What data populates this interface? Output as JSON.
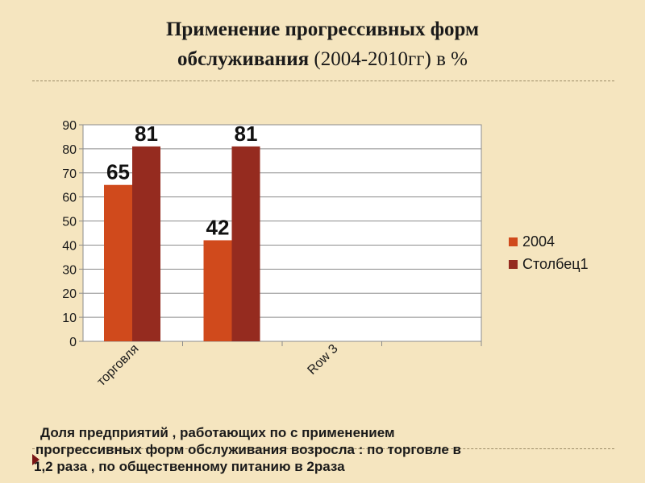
{
  "title": {
    "line1": "Применение прогрессивных форм",
    "line2_bold": "обслуживания",
    "line2_rest": " (2004-2010гг) в %"
  },
  "caption": {
    "line1": "Доля  предприятий , работающих по с применением",
    "line2": "прогрессивных форм обслуживания возросла : по торговле в",
    "line3": "1,2 раза , по общественному питанию  в 2раза"
  },
  "colors": {
    "series1": "#d04a1c",
    "series2": "#952b1f",
    "background": "#f5e5bf",
    "plot_bg": "#ffffff",
    "gridline": "#8c8c8c"
  },
  "chart_data": {
    "type": "bar",
    "categories": [
      "торговля",
      "",
      "Row 3",
      ""
    ],
    "series": [
      {
        "name": "2004",
        "values": [
          65,
          42,
          null,
          null
        ]
      },
      {
        "name": "Столбец1",
        "values": [
          81,
          81,
          null,
          null
        ]
      }
    ],
    "ylim": [
      0,
      90
    ],
    "yticks": [
      0,
      10,
      20,
      30,
      40,
      50,
      60,
      70,
      80,
      90
    ],
    "grid": true,
    "legend": "right",
    "data_labels": true
  }
}
